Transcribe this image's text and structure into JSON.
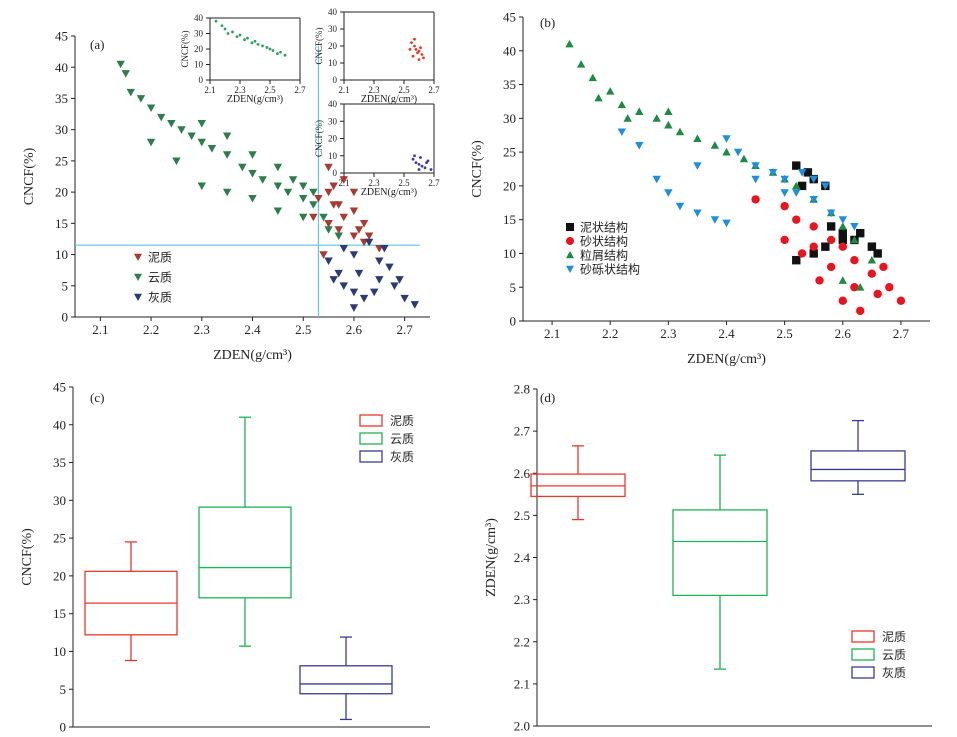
{
  "chart_data": [
    {
      "id": "a",
      "type": "scatter",
      "panel_label": "(a)",
      "xlabel": "ZDEN(g/cm³)",
      "ylabel": "CNCF(%)",
      "xlim": [
        2.05,
        2.75
      ],
      "ylim": [
        0,
        45
      ],
      "xticks": [
        "2.1",
        "2.2",
        "2.3",
        "2.4",
        "2.5",
        "2.6",
        "2.7"
      ],
      "yticks": [
        "0",
        "5",
        "10",
        "15",
        "20",
        "25",
        "30",
        "35",
        "40",
        "45"
      ],
      "reference_lines": {
        "x": 2.53,
        "y": 11.5,
        "color": "#5bc8e8"
      },
      "legend": {
        "position": "left-bottom",
        "entries": [
          "泥质",
          "云质",
          "灰质"
        ]
      },
      "series": [
        {
          "name": "云质",
          "color": "#2e7d4f",
          "marker": "triangle-down",
          "points": [
            [
              2.14,
              40.5
            ],
            [
              2.15,
              39
            ],
            [
              2.16,
              36
            ],
            [
              2.18,
              35
            ],
            [
              2.2,
              33.5
            ],
            [
              2.22,
              32
            ],
            [
              2.24,
              31
            ],
            [
              2.26,
              30
            ],
            [
              2.28,
              29
            ],
            [
              2.3,
              28
            ],
            [
              2.32,
              27
            ],
            [
              2.35,
              26
            ],
            [
              2.38,
              24
            ],
            [
              2.4,
              23
            ],
            [
              2.42,
              22
            ],
            [
              2.45,
              21
            ],
            [
              2.47,
              20
            ],
            [
              2.5,
              19
            ],
            [
              2.52,
              18
            ],
            [
              2.54,
              16
            ],
            [
              2.55,
              15
            ],
            [
              2.2,
              28
            ],
            [
              2.25,
              25
            ],
            [
              2.3,
              31
            ],
            [
              2.35,
              29
            ],
            [
              2.4,
              26
            ],
            [
              2.45,
              24
            ],
            [
              2.48,
              22
            ],
            [
              2.5,
              21
            ],
            [
              2.52,
              20
            ],
            [
              2.3,
              21
            ],
            [
              2.35,
              20
            ],
            [
              2.4,
              19
            ],
            [
              2.45,
              17
            ],
            [
              2.5,
              16
            ],
            [
              2.55,
              14
            ],
            [
              2.57,
              13
            ]
          ]
        },
        {
          "name": "泥质",
          "color": "#a83a32",
          "marker": "triangle-down",
          "points": [
            [
              2.53,
              19
            ],
            [
              2.55,
              20
            ],
            [
              2.57,
              18
            ],
            [
              2.6,
              17
            ],
            [
              2.62,
              15
            ],
            [
              2.55,
              24
            ],
            [
              2.58,
              22
            ],
            [
              2.6,
              20
            ],
            [
              2.52,
              16
            ],
            [
              2.55,
              15
            ],
            [
              2.57,
              14
            ],
            [
              2.6,
              13
            ],
            [
              2.62,
              12
            ],
            [
              2.65,
              11
            ],
            [
              2.54,
              10
            ],
            [
              2.56,
              18
            ],
            [
              2.58,
              16
            ],
            [
              2.61,
              14
            ],
            [
              2.63,
              13
            ],
            [
              2.56,
              21
            ]
          ]
        },
        {
          "name": "灰质",
          "color": "#2e3a78",
          "marker": "triangle-down",
          "points": [
            [
              2.55,
              9
            ],
            [
              2.57,
              7
            ],
            [
              2.58,
              5
            ],
            [
              2.6,
              4
            ],
            [
              2.62,
              3
            ],
            [
              2.65,
              6
            ],
            [
              2.67,
              8
            ],
            [
              2.7,
              3
            ],
            [
              2.72,
              2
            ],
            [
              2.58,
              11
            ],
            [
              2.6,
              10
            ],
            [
              2.63,
              12
            ],
            [
              2.66,
              11
            ],
            [
              2.6,
              1.5
            ],
            [
              2.64,
              4
            ],
            [
              2.68,
              5
            ],
            [
              2.56,
              6
            ],
            [
              2.61,
              7
            ],
            [
              2.65,
              9
            ],
            [
              2.69,
              6
            ]
          ]
        }
      ],
      "insets": [
        {
          "id": "a-inset-1",
          "color": "#2e9e5a",
          "xlim": [
            2.1,
            2.7
          ],
          "ylim": [
            0,
            40
          ],
          "xticks": [
            "2.1",
            "2.3",
            "2.5",
            "2.7"
          ],
          "yticks": [
            "0",
            "10",
            "20",
            "30",
            "40"
          ],
          "xlabel": "ZDEN(g/cm³)",
          "ylabel": "CNCF(%)",
          "points": [
            [
              2.14,
              38
            ],
            [
              2.18,
              35
            ],
            [
              2.2,
              33
            ],
            [
              2.25,
              31
            ],
            [
              2.3,
              29
            ],
            [
              2.35,
              27
            ],
            [
              2.4,
              25
            ],
            [
              2.45,
              22
            ],
            [
              2.5,
              20
            ],
            [
              2.55,
              17
            ],
            [
              2.6,
              16
            ],
            [
              2.22,
              30
            ],
            [
              2.28,
              28
            ],
            [
              2.33,
              26
            ],
            [
              2.38,
              24
            ],
            [
              2.42,
              23
            ],
            [
              2.48,
              21
            ],
            [
              2.52,
              19
            ],
            [
              2.57,
              18
            ]
          ]
        },
        {
          "id": "a-inset-2",
          "color": "#e8391f",
          "xlim": [
            2.1,
            2.7
          ],
          "ylim": [
            0,
            40
          ],
          "xticks": [
            "2.1",
            "2.3",
            "2.5",
            "2.7"
          ],
          "yticks": [
            "0",
            "10",
            "20",
            "30",
            "40"
          ],
          "xlabel": "ZDEN(g/cm³)",
          "ylabel": "CNCF(%)",
          "points": [
            [
              2.55,
              22
            ],
            [
              2.57,
              20
            ],
            [
              2.58,
              18
            ],
            [
              2.6,
              17
            ],
            [
              2.62,
              15
            ],
            [
              2.56,
              14
            ],
            [
              2.59,
              16
            ],
            [
              2.61,
              19
            ],
            [
              2.63,
              13
            ],
            [
              2.54,
              18
            ],
            [
              2.6,
              12
            ],
            [
              2.57,
              24
            ]
          ]
        },
        {
          "id": "a-inset-3",
          "color": "#3838b0",
          "xlim": [
            2.1,
            2.7
          ],
          "ylim": [
            0,
            40
          ],
          "xticks": [
            "2.1",
            "2.3",
            "2.5",
            "2.7"
          ],
          "yticks": [
            "0",
            "10",
            "20",
            "30",
            "40"
          ],
          "xlabel": "ZDEN(g/cm³)",
          "ylabel": "CNCF(%)",
          "points": [
            [
              2.56,
              8
            ],
            [
              2.58,
              6
            ],
            [
              2.6,
              5
            ],
            [
              2.62,
              4
            ],
            [
              2.64,
              3
            ],
            [
              2.66,
              7
            ],
            [
              2.68,
              2
            ],
            [
              2.57,
              10
            ],
            [
              2.61,
              9
            ],
            [
              2.65,
              6
            ],
            [
              2.6,
              2
            ]
          ]
        }
      ]
    },
    {
      "id": "b",
      "type": "scatter",
      "panel_label": "(b)",
      "xlabel": "ZDEN(g/cm³)",
      "ylabel": "CNCF(%)",
      "xlim": [
        2.05,
        2.75
      ],
      "ylim": [
        0,
        45
      ],
      "xticks": [
        "2.1",
        "2.2",
        "2.3",
        "2.4",
        "2.5",
        "2.6",
        "2.7"
      ],
      "yticks": [
        "0",
        "5",
        "10",
        "15",
        "20",
        "25",
        "30",
        "35",
        "40",
        "45"
      ],
      "legend": {
        "position": "left-middle",
        "entries": [
          "泥状结构",
          "砂状结构",
          "粒屑结构",
          "砂砾状结构"
        ]
      },
      "series": [
        {
          "name": "泥状结构",
          "color": "#111111",
          "marker": "square",
          "points": [
            [
              2.52,
              23
            ],
            [
              2.54,
              22
            ],
            [
              2.55,
              21
            ],
            [
              2.57,
              20
            ],
            [
              2.6,
              13
            ],
            [
              2.62,
              12
            ],
            [
              2.65,
              11
            ],
            [
              2.52,
              9
            ],
            [
              2.55,
              10
            ],
            [
              2.57,
              11
            ],
            [
              2.58,
              14
            ],
            [
              2.6,
              12
            ],
            [
              2.63,
              13
            ],
            [
              2.66,
              10
            ],
            [
              2.53,
              20
            ]
          ]
        },
        {
          "name": "砂状结构",
          "color": "#e8141e",
          "marker": "circle",
          "points": [
            [
              2.45,
              18
            ],
            [
              2.5,
              17
            ],
            [
              2.52,
              15
            ],
            [
              2.55,
              14
            ],
            [
              2.58,
              12
            ],
            [
              2.6,
              11
            ],
            [
              2.62,
              9
            ],
            [
              2.65,
              7
            ],
            [
              2.68,
              5
            ],
            [
              2.7,
              3
            ],
            [
              2.6,
              3
            ],
            [
              2.63,
              1.5
            ],
            [
              2.56,
              6
            ],
            [
              2.66,
              4
            ],
            [
              2.55,
              11
            ],
            [
              2.58,
              8
            ],
            [
              2.62,
              5
            ],
            [
              2.5,
              12
            ],
            [
              2.53,
              10
            ],
            [
              2.67,
              8
            ]
          ]
        },
        {
          "name": "粒屑结构",
          "color": "#1f8a45",
          "marker": "triangle-up",
          "points": [
            [
              2.13,
              41
            ],
            [
              2.15,
              38
            ],
            [
              2.17,
              36
            ],
            [
              2.2,
              34
            ],
            [
              2.22,
              32
            ],
            [
              2.25,
              31
            ],
            [
              2.28,
              30
            ],
            [
              2.3,
              29
            ],
            [
              2.32,
              28
            ],
            [
              2.35,
              27
            ],
            [
              2.38,
              26
            ],
            [
              2.4,
              25
            ],
            [
              2.43,
              24
            ],
            [
              2.45,
              23
            ],
            [
              2.48,
              22
            ],
            [
              2.5,
              21
            ],
            [
              2.52,
              20
            ],
            [
              2.55,
              18
            ],
            [
              2.58,
              16
            ],
            [
              2.6,
              14
            ],
            [
              2.62,
              12
            ],
            [
              2.65,
              9
            ],
            [
              2.6,
              6
            ],
            [
              2.63,
              5
            ],
            [
              2.18,
              33
            ],
            [
              2.23,
              30
            ],
            [
              2.3,
              31
            ]
          ]
        },
        {
          "name": "砂砾状结构",
          "color": "#1e8fe0",
          "marker": "triangle-down",
          "points": [
            [
              2.22,
              28
            ],
            [
              2.25,
              26
            ],
            [
              2.28,
              21
            ],
            [
              2.3,
              19
            ],
            [
              2.32,
              17
            ],
            [
              2.35,
              16
            ],
            [
              2.38,
              15
            ],
            [
              2.4,
              14.5
            ],
            [
              2.4,
              27
            ],
            [
              2.42,
              25
            ],
            [
              2.45,
              23
            ],
            [
              2.48,
              22
            ],
            [
              2.5,
              21
            ],
            [
              2.52,
              19
            ],
            [
              2.55,
              18
            ],
            [
              2.58,
              16
            ],
            [
              2.6,
              15
            ],
            [
              2.62,
              14
            ],
            [
              2.45,
              21
            ],
            [
              2.5,
              19
            ],
            [
              2.53,
              22
            ],
            [
              2.55,
              21
            ],
            [
              2.57,
              20
            ],
            [
              2.35,
              23
            ]
          ]
        }
      ]
    },
    {
      "id": "c",
      "type": "box",
      "panel_label": "(c)",
      "xlabel": "",
      "ylabel": "CNCF(%)",
      "ylim": [
        0,
        45
      ],
      "yticks": [
        "0",
        "5",
        "10",
        "15",
        "20",
        "25",
        "30",
        "35",
        "40",
        "45"
      ],
      "legend": {
        "position": "top-right",
        "entries": [
          "泥质",
          "云质",
          "灰质"
        ]
      },
      "series": [
        {
          "name": "泥质",
          "color": "#e8392e",
          "min": 8.8,
          "q1": 12.2,
          "median": 16.4,
          "q3": 20.6,
          "max": 24.5
        },
        {
          "name": "云质",
          "color": "#1fb25a",
          "min": 10.7,
          "q1": 17.1,
          "median": 21.1,
          "q3": 29.1,
          "max": 41
        },
        {
          "name": "灰质",
          "color": "#3a3a96",
          "min": 1,
          "q1": 4.4,
          "median": 5.7,
          "q3": 8.1,
          "max": 11.9
        }
      ]
    },
    {
      "id": "d",
      "type": "box",
      "panel_label": "(d)",
      "xlabel": "",
      "ylabel": "ZDEN(g/cm³)",
      "ylim": [
        2.0,
        2.8
      ],
      "yticks": [
        "2.0",
        "2.1",
        "2.2",
        "2.3",
        "2.4",
        "2.5",
        "2.6",
        "2.7",
        "2.8"
      ],
      "legend": {
        "position": "bottom-right",
        "entries": [
          "泥质",
          "云质",
          "灰质"
        ]
      },
      "series": [
        {
          "name": "泥质",
          "color": "#e8392e",
          "min": 2.49,
          "q1": 2.545,
          "median": 2.57,
          "q3": 2.598,
          "max": 2.665
        },
        {
          "name": "云质",
          "color": "#1fb25a",
          "min": 2.135,
          "q1": 2.31,
          "median": 2.438,
          "q3": 2.513,
          "max": 2.643
        },
        {
          "name": "灰质",
          "color": "#3a3a96",
          "min": 2.55,
          "q1": 2.582,
          "median": 2.609,
          "q3": 2.653,
          "max": 2.725
        }
      ]
    }
  ]
}
